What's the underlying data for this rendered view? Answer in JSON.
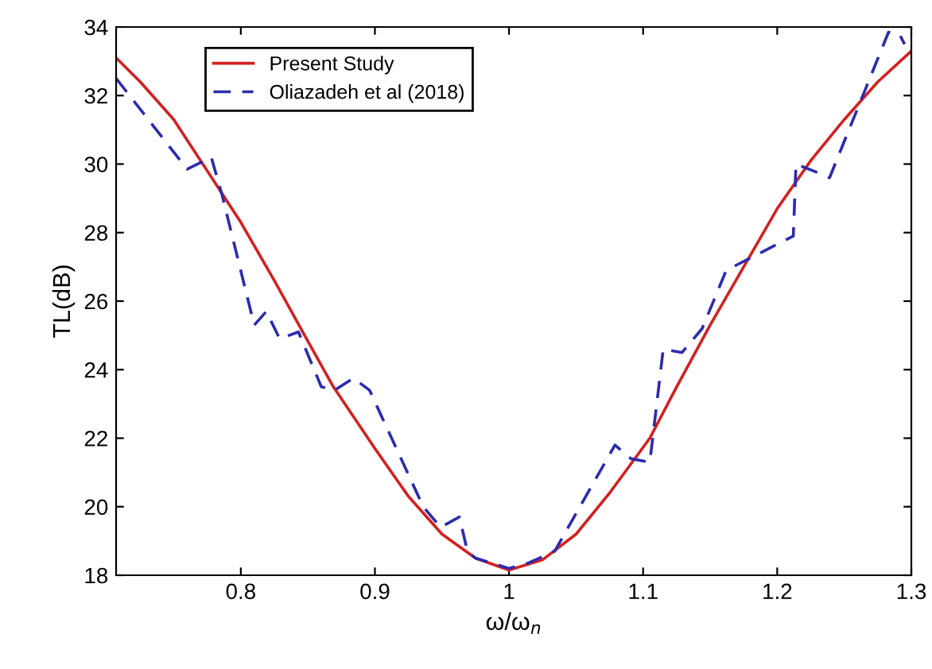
{
  "chart_data": {
    "type": "line",
    "xlabel": "ω/ω$_{n}$",
    "ylabel": "TL(dB)",
    "xlim": [
      0.707,
      1.3
    ],
    "ylim": [
      18,
      34
    ],
    "xticks": [
      0.8,
      0.9,
      1,
      1.1,
      1.2,
      1.3
    ],
    "yticks": [
      18,
      20,
      22,
      24,
      26,
      28,
      30,
      32,
      34
    ],
    "grid": false,
    "legend": "top left",
    "series": [
      {
        "name": "Present Study",
        "color": "#d42020",
        "line_style": "solid",
        "x": [
          0.707,
          0.725,
          0.75,
          0.775,
          0.8,
          0.825,
          0.849,
          0.869,
          0.9,
          0.925,
          0.95,
          0.975,
          1.0,
          1.025,
          1.05,
          1.075,
          1.105,
          1.125,
          1.15,
          1.175,
          1.2,
          1.225,
          1.25,
          1.275,
          1.3
        ],
        "values": [
          33.1,
          32.4,
          31.3,
          29.8,
          28.3,
          26.6,
          24.9,
          23.5,
          21.7,
          20.3,
          19.2,
          18.5,
          18.15,
          18.45,
          19.2,
          20.4,
          22.0,
          23.5,
          25.3,
          27.0,
          28.7,
          30.1,
          31.3,
          32.4,
          33.3
        ]
      },
      {
        "name": "Oliazadeh et al (2018)",
        "color": "#2b2bb0",
        "line_style": "dashed",
        "x": [
          0.707,
          0.76,
          0.778,
          0.786,
          0.81,
          0.819,
          0.829,
          0.843,
          0.86,
          0.87,
          0.884,
          0.896,
          0.936,
          0.949,
          0.963,
          0.969,
          0.975,
          1.0,
          1.014,
          1.034,
          1.079,
          1.091,
          1.105,
          1.115,
          1.129,
          1.144,
          1.162,
          1.212,
          1.214,
          1.227,
          1.239,
          1.283,
          1.291,
          1.295
        ],
        "values": [
          32.5,
          29.85,
          30.2,
          29.1,
          25.3,
          25.7,
          24.9,
          25.1,
          23.5,
          23.4,
          23.75,
          23.4,
          20.0,
          19.4,
          19.7,
          18.7,
          18.5,
          18.2,
          18.35,
          18.7,
          21.8,
          21.4,
          21.3,
          24.6,
          24.5,
          25.2,
          26.9,
          27.9,
          30.0,
          29.8,
          29.6,
          33.85,
          33.8,
          33.5
        ]
      }
    ]
  }
}
